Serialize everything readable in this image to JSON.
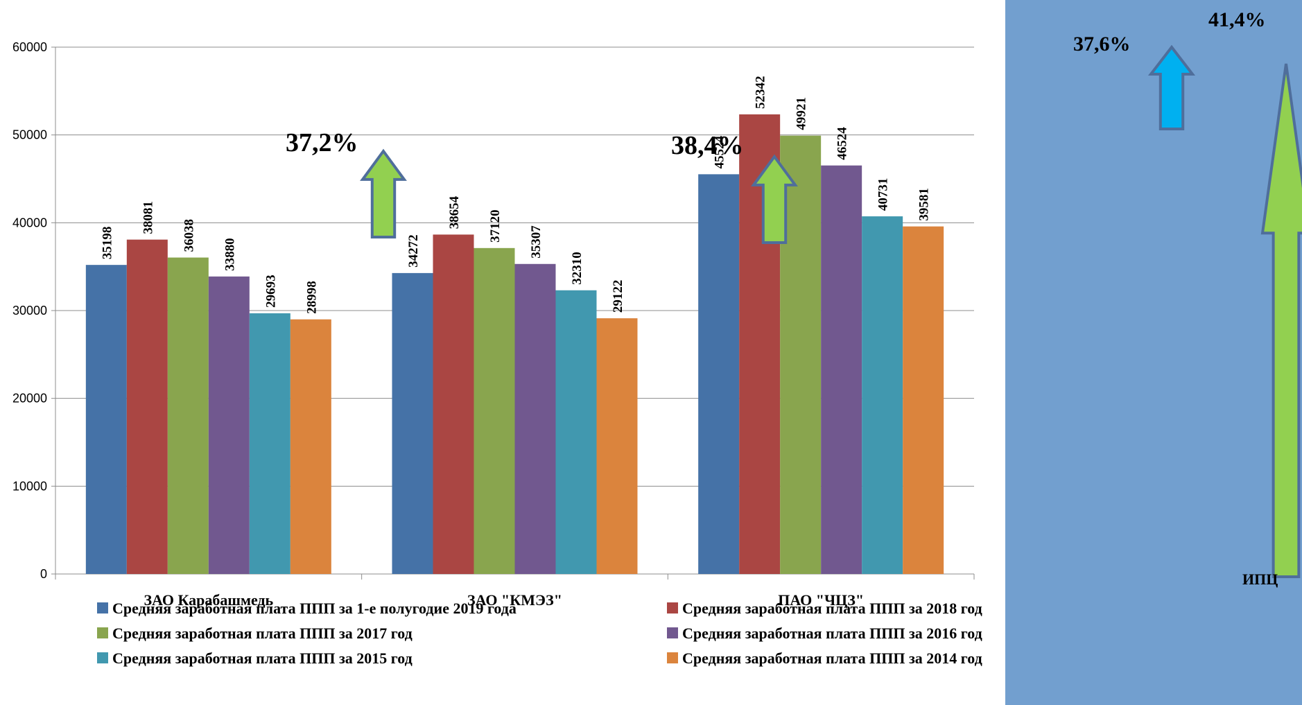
{
  "chart_data": {
    "type": "bar",
    "categories": [
      "ЗАО Карабашмедь",
      "ЗАО \"КМЭЗ\"",
      "ПАО \"ЧЦЗ\""
    ],
    "series": [
      {
        "name": "Средняя заработная плата ППП за 1-е полугодие 2019 года",
        "color": "#4572A7",
        "values": [
          35198,
          34272,
          45524
        ]
      },
      {
        "name": "Средняя заработная плата ППП за 2018 год",
        "color": "#AA4643",
        "values": [
          38081,
          38654,
          52342
        ]
      },
      {
        "name": "Средняя заработная плата ППП за 2017 год",
        "color": "#89A54E",
        "values": [
          36038,
          37120,
          49921
        ]
      },
      {
        "name": "Средняя заработная плата ППП за 2016 год",
        "color": "#71588F",
        "values": [
          33880,
          35307,
          46524
        ]
      },
      {
        "name": "Средняя заработная плата ППП за 2015 год",
        "color": "#4198AF",
        "values": [
          29693,
          32310,
          40731
        ]
      },
      {
        "name": "Средняя заработная плата ППП за 2014 год",
        "color": "#DB843D",
        "values": [
          28998,
          29122,
          39581
        ]
      }
    ],
    "data_labels": [
      [
        "35198",
        "38081",
        "36038",
        "33880",
        "29693",
        "28998"
      ],
      [
        "34272",
        "38654",
        "37120",
        "35307",
        "32310",
        "29122"
      ],
      [
        "45524",
        "52342",
        "49921",
        "46524",
        "40731",
        "39581"
      ]
    ],
    "ylim": [
      0,
      60000
    ],
    "yticks": [
      "0",
      "10000",
      "20000",
      "30000",
      "40000",
      "50000",
      "60000"
    ],
    "grid": true,
    "legend_position": "bottom",
    "annotations": [
      {
        "text": "37,2%",
        "category": 1,
        "arrow_color": "#92D050"
      },
      {
        "text": "38,4%",
        "category": 2,
        "arrow_color": "#92D050"
      }
    ]
  },
  "side_panel": {
    "background": "#729FCF",
    "labels": [
      {
        "text": "37,6%",
        "arrow_color": "#00B0F0"
      },
      {
        "text": "41,4%",
        "arrow_color": "#92D050"
      }
    ],
    "bottom_label": "ИПЦ"
  }
}
